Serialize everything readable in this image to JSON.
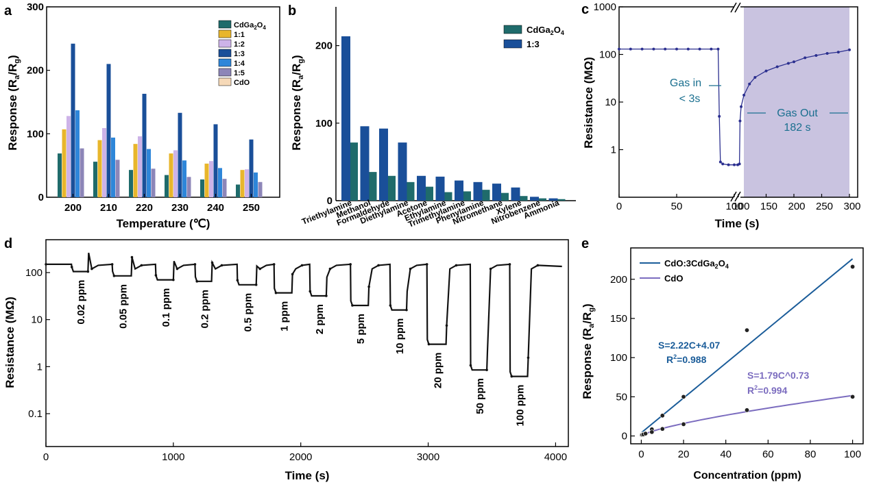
{
  "chart_data": [
    {
      "panel": "a",
      "type": "bar",
      "title": "",
      "xlabel": "Temperature (℃)",
      "ylabel_main": "Response (R",
      "ylabel_sub1": "a",
      "ylabel_mid": "/R",
      "ylabel_sub2": "g",
      "ylabel_end": ")",
      "ylim": [
        0,
        300
      ],
      "yticks": [
        "0",
        "100",
        "200",
        "300"
      ],
      "categories": [
        "200",
        "210",
        "220",
        "230",
        "240",
        "250"
      ],
      "legend_position": "top-right",
      "series": [
        {
          "name": "CdGa2O4",
          "label_main": "CdGa",
          "label_sub1": "2",
          "label_mid": "O",
          "label_sub2": "4",
          "color": "#1f6b6b",
          "values": [
            69,
            56,
            43,
            35,
            28,
            20
          ]
        },
        {
          "name": "1:1",
          "color": "#e8b62c",
          "values": [
            107,
            90,
            84,
            69,
            53,
            43
          ]
        },
        {
          "name": "1:2",
          "color": "#cdb3e8",
          "values": [
            128,
            109,
            96,
            74,
            57,
            44
          ]
        },
        {
          "name": "1:3",
          "color": "#1a4f99",
          "values": [
            242,
            210,
            163,
            133,
            115,
            91
          ]
        },
        {
          "name": "1:4",
          "color": "#2e86d9",
          "values": [
            137,
            94,
            76,
            58,
            46,
            39
          ]
        },
        {
          "name": "1:5",
          "color": "#8d86b8",
          "values": [
            77,
            59,
            45,
            32,
            29,
            24
          ]
        },
        {
          "name": "CdO",
          "color": "#f6d9b8",
          "values": [
            0,
            0,
            0,
            0,
            0,
            0
          ]
        }
      ]
    },
    {
      "panel": "b",
      "type": "bar",
      "title": "",
      "xlabel": "",
      "ylabel_main": "Response (R",
      "ylabel_sub1": "a",
      "ylabel_mid": "/R",
      "ylabel_sub2": "g",
      "ylabel_end": ")",
      "ylim": [
        0,
        250
      ],
      "yticks": [
        "0",
        "100",
        "200"
      ],
      "categories": [
        "Triethylamine",
        "Methanol",
        "Formaldehyde",
        "Diethylamine",
        "Acetone",
        "Ethylamine",
        "Trimethylamine",
        "Phenylamine",
        "Nitromethane",
        "Xylene",
        "Nitrobenzene",
        "Ammonia"
      ],
      "legend_position": "top-right",
      "series": [
        {
          "name": "CdGa2O4",
          "label_main": "CdGa",
          "label_sub1": "2",
          "label_mid": "O",
          "label_sub2": "4",
          "color": "#1f6b6b",
          "values": [
            75,
            37,
            32,
            24,
            18,
            11,
            12,
            14,
            10,
            6,
            3,
            2
          ]
        },
        {
          "name": "1:3",
          "color": "#1a4f99",
          "values": [
            212,
            96,
            93,
            75,
            32,
            31,
            26,
            24,
            22,
            17,
            5,
            3
          ]
        }
      ]
    },
    {
      "panel": "c",
      "type": "line",
      "xlabel": "Time (s)",
      "ylabel": "Resistance (MΩ)",
      "yscale": "log",
      "ylim": [
        0.1,
        1000
      ],
      "yticks": [
        "1",
        "10",
        "100",
        "1000"
      ],
      "xticks_left": [
        "0",
        "50",
        "100"
      ],
      "xticks_right": [
        "100",
        "150",
        "200",
        "250",
        "300"
      ],
      "broken_axis": true,
      "annotation_in_1": "Gas in",
      "annotation_in_2": "< 3s",
      "annotation_out_1": "Gas Out",
      "annotation_out_2": "182 s",
      "line_color": "#2b2f8f",
      "shade_color": "#c9c3e0",
      "series": [
        {
          "name": "left",
          "x": [
            0,
            10,
            20,
            30,
            40,
            50,
            60,
            70,
            80,
            86,
            87,
            88,
            90,
            95,
            100,
            103
          ],
          "y": [
            130,
            130,
            130,
            130,
            130,
            130,
            130,
            130,
            130,
            130,
            5,
            0.55,
            0.5,
            0.48,
            0.48,
            0.48
          ]
        },
        {
          "name": "right",
          "x": [
            102,
            103,
            105,
            110,
            120,
            130,
            150,
            170,
            190,
            200,
            220,
            240,
            260,
            280,
            300
          ],
          "y": [
            0.5,
            4,
            8,
            14,
            24,
            33,
            45,
            55,
            65,
            70,
            85,
            95,
            105,
            112,
            125
          ]
        }
      ]
    },
    {
      "panel": "d",
      "type": "line",
      "xlabel": "Time (s)",
      "ylabel": "Resistance (MΩ)",
      "yscale": "log",
      "ylim": [
        0.02,
        500
      ],
      "xlim": [
        0,
        4100
      ],
      "yticks": [
        "0.1",
        "1",
        "10",
        "100"
      ],
      "xticks": [
        "0",
        "1000",
        "2000",
        "3000",
        "4000"
      ],
      "baseline": 150,
      "line_color": "#111111",
      "steps": [
        {
          "label": "0.02 ppm",
          "start": 200,
          "end": 330,
          "value": 105
        },
        {
          "label": "0.05 ppm",
          "start": 520,
          "end": 670,
          "value": 85
        },
        {
          "label": "0.1 ppm",
          "start": 860,
          "end": 1000,
          "value": 70
        },
        {
          "label": "0.2 ppm",
          "start": 1170,
          "end": 1300,
          "value": 65
        },
        {
          "label": "0.5 ppm",
          "start": 1500,
          "end": 1650,
          "value": 55
        },
        {
          "label": "1 ppm",
          "start": 1790,
          "end": 1930,
          "value": 37
        },
        {
          "label": "2 ppm",
          "start": 2070,
          "end": 2200,
          "value": 32
        },
        {
          "label": "5 ppm",
          "start": 2390,
          "end": 2530,
          "value": 20
        },
        {
          "label": "10 ppm",
          "start": 2700,
          "end": 2830,
          "value": 16
        },
        {
          "label": "20 ppm",
          "start": 2990,
          "end": 3140,
          "value": 3
        },
        {
          "label": "50 ppm",
          "start": 3330,
          "end": 3460,
          "value": 0.85
        },
        {
          "label": "100 ppm",
          "start": 3640,
          "end": 3780,
          "value": 0.62
        }
      ]
    },
    {
      "panel": "e",
      "type": "scatter",
      "xlabel": "Concentration (ppm)",
      "ylabel_main": "Response (R",
      "ylabel_sub1": "a",
      "ylabel_mid": "/R",
      "ylabel_sub2": "g",
      "ylabel_end": ")",
      "xlim": [
        -5,
        105
      ],
      "ylim": [
        -10,
        240
      ],
      "xticks": [
        "0",
        "20",
        "40",
        "60",
        "80",
        "100"
      ],
      "yticks": [
        "0",
        "50",
        "100",
        "150",
        "200"
      ],
      "legend_position": "top-left",
      "series": [
        {
          "name": "CdO:3CdGa2O4",
          "label_main": "CdO:3CdGa",
          "label_sub1": "2",
          "label_mid": "O",
          "label_sub2": "4",
          "color": "#1a5c99",
          "fit": "linear",
          "slope": 2.22,
          "intercept": 4.07,
          "x": [
            0.02,
            0.05,
            0.1,
            0.2,
            0.5,
            1,
            2,
            5,
            10,
            20,
            50,
            100
          ],
          "y": [
            1.1,
            1.3,
            1.5,
            1.8,
            2.2,
            2.6,
            3.4,
            8.5,
            26,
            50,
            135,
            216
          ]
        },
        {
          "name": "CdO",
          "color": "#7b6cbf",
          "fit": "power",
          "coef": 1.79,
          "exp": 0.73,
          "x": [
            0.02,
            0.05,
            0.1,
            0.2,
            0.5,
            1,
            2,
            5,
            10,
            20,
            50,
            100
          ],
          "y": [
            0.8,
            1,
            1.2,
            1.4,
            1.6,
            2,
            3,
            5,
            9,
            15,
            33,
            50
          ]
        }
      ],
      "eq1_line1": "S=2.22C+4.07",
      "eq1_line2_main": "R",
      "eq1_line2_sup": "2",
      "eq1_line2_end": "=0.988",
      "eq2_line1": "S=1.79C^0.73",
      "eq2_line2_main": "R",
      "eq2_line2_sup": "2",
      "eq2_line2_end": "=0.994"
    }
  ],
  "panel_labels": {
    "a": "a",
    "b": "b",
    "c": "c",
    "d": "d",
    "e": "e"
  }
}
